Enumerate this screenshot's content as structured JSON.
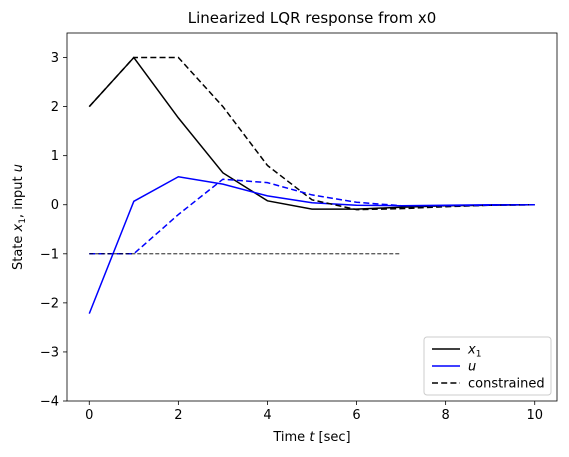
{
  "chart_data": {
    "type": "line",
    "title": "Linearized LQR response from x0",
    "xlabel": {
      "pre": "Time ",
      "var": "t",
      "post": " [sec]"
    },
    "ylabel": {
      "pre": "State ",
      "var": "x",
      "sub": "1",
      "mid": ", input ",
      "var2": "u"
    },
    "xlim": [
      -0.5,
      10.5
    ],
    "ylim": [
      -4,
      3.5
    ],
    "xticks": [
      0,
      2,
      4,
      6,
      8,
      10
    ],
    "yticks": [
      -4,
      -3,
      -2,
      -1,
      0,
      1,
      2,
      3
    ],
    "legend_position": "lower-right",
    "series": [
      {
        "name": "x1",
        "legend_var": "x",
        "legend_sub": "1",
        "color": "#000000",
        "dash": "solid",
        "x": [
          0,
          1,
          2,
          3,
          4,
          5,
          6,
          7,
          8,
          9,
          10
        ],
        "y": [
          2.0,
          3.0,
          1.77,
          0.65,
          0.08,
          -0.09,
          -0.09,
          -0.05,
          -0.02,
          -0.01,
          0.0
        ]
      },
      {
        "name": "u",
        "legend_var": "u",
        "color": "#0000ff",
        "dash": "solid",
        "x": [
          0,
          1,
          2,
          3,
          4,
          5,
          6,
          7,
          8,
          9,
          10
        ],
        "y": [
          -2.22,
          0.07,
          0.57,
          0.42,
          0.18,
          0.04,
          -0.01,
          -0.02,
          -0.01,
          0.0,
          0.0
        ]
      },
      {
        "name": "constrained",
        "legend_text": "constrained",
        "color": "#000000",
        "dash": "dashed",
        "x": [
          0,
          1,
          2,
          3,
          4,
          5,
          6,
          7,
          8,
          9,
          10
        ],
        "y": [
          2.0,
          3.0,
          3.0,
          2.0,
          0.8,
          0.1,
          -0.1,
          -0.08,
          -0.04,
          -0.01,
          0.0
        ]
      },
      {
        "name": "u constrained",
        "color": "#0000ff",
        "dash": "dashed",
        "in_legend": false,
        "x": [
          0,
          1,
          2,
          3,
          4,
          5,
          6,
          7,
          8,
          9,
          10
        ],
        "y": [
          -1.0,
          -1.0,
          -0.2,
          0.52,
          0.45,
          0.2,
          0.05,
          -0.02,
          -0.02,
          -0.01,
          0.0
        ]
      },
      {
        "name": "limit",
        "color": "#000000",
        "dash": "thin-dashed",
        "in_legend": false,
        "x": [
          0,
          7
        ],
        "y": [
          -1.0,
          -1.0
        ]
      }
    ]
  }
}
